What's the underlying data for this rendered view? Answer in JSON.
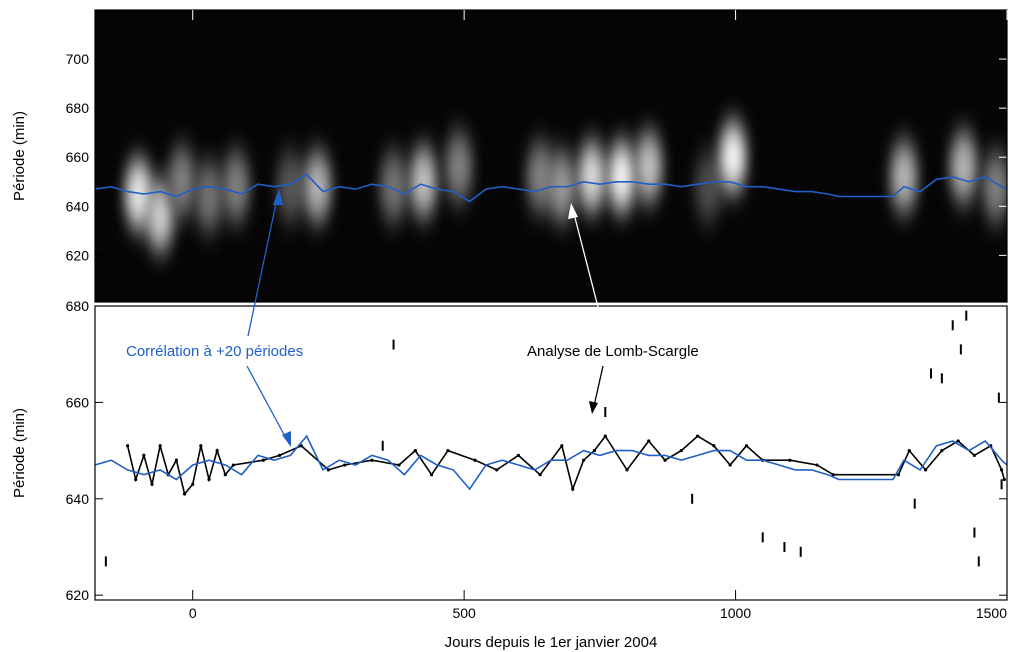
{
  "chart_data": [
    {
      "type": "heatmap",
      "ylabel": "Période (min)",
      "xlim": [
        -180,
        1500
      ],
      "ylim": [
        601,
        720
      ],
      "yticks": [
        620,
        640,
        660,
        680,
        700
      ],
      "colormap": "grayscale (black = low power, white = high power)",
      "hotspots": [
        {
          "x": -100,
          "y": 645,
          "w": 0.9
        },
        {
          "x": -60,
          "y": 636,
          "w": 0.8
        },
        {
          "x": -20,
          "y": 650,
          "w": 0.5
        },
        {
          "x": 30,
          "y": 644,
          "w": 0.45
        },
        {
          "x": 80,
          "y": 648,
          "w": 0.5
        },
        {
          "x": 180,
          "y": 648,
          "w": 0.35
        },
        {
          "x": 230,
          "y": 648,
          "w": 0.7
        },
        {
          "x": 370,
          "y": 648,
          "w": 0.45
        },
        {
          "x": 425,
          "y": 650,
          "w": 0.75
        },
        {
          "x": 490,
          "y": 656,
          "w": 0.5
        },
        {
          "x": 640,
          "y": 652,
          "w": 0.5
        },
        {
          "x": 680,
          "y": 648,
          "w": 0.6
        },
        {
          "x": 735,
          "y": 652,
          "w": 0.85
        },
        {
          "x": 790,
          "y": 652,
          "w": 0.95
        },
        {
          "x": 840,
          "y": 656,
          "w": 0.75
        },
        {
          "x": 950,
          "y": 648,
          "w": 0.3
        },
        {
          "x": 995,
          "y": 660,
          "w": 0.95
        },
        {
          "x": 1310,
          "y": 652,
          "w": 0.7
        },
        {
          "x": 1420,
          "y": 656,
          "w": 0.7
        },
        {
          "x": 1480,
          "y": 648,
          "w": 0.5
        }
      ],
      "series": [
        {
          "color": "#1f5fc8",
          "x": [
            -180,
            -150,
            -120,
            -90,
            -60,
            -30,
            0,
            30,
            60,
            90,
            120,
            150,
            180,
            210,
            240,
            270,
            300,
            330,
            360,
            390,
            420,
            450,
            480,
            510,
            540,
            570,
            600,
            630,
            660,
            690,
            720,
            750,
            780,
            810,
            840,
            870,
            900,
            930,
            960,
            990,
            1020,
            1050,
            1080,
            1110,
            1140,
            1170,
            1190,
            1290,
            1310,
            1340,
            1370,
            1400,
            1430,
            1460,
            1490,
            1500
          ],
          "y": [
            647,
            648,
            646,
            645,
            646,
            644,
            647,
            648,
            647,
            645,
            649,
            648,
            649,
            653,
            646,
            648,
            647,
            649,
            648,
            645,
            649,
            647,
            646,
            642,
            647,
            648,
            647,
            646,
            648,
            648,
            650,
            649,
            650,
            650,
            649,
            649,
            648,
            649,
            650,
            650,
            648,
            648,
            647,
            646,
            646,
            645,
            644,
            644,
            648,
            646,
            651,
            652,
            650,
            652,
            648,
            647
          ]
        }
      ]
    },
    {
      "type": "scatter",
      "xlabel": "Jours depuis le 1er janvier 2004",
      "ylabel": "Période (min)",
      "xlim": [
        -180,
        1500
      ],
      "ylim": [
        619,
        680
      ],
      "xticks": [
        0,
        500,
        1000,
        1500
      ],
      "yticks": [
        620,
        640,
        660,
        680
      ],
      "series": [
        {
          "name": "Analyse de Lomb-Scargle",
          "color": "#000000",
          "x": [
            -120,
            -105,
            -90,
            -75,
            -60,
            -45,
            -30,
            -15,
            0,
            15,
            30,
            45,
            60,
            75,
            130,
            160,
            200,
            250,
            280,
            330,
            380,
            410,
            440,
            470,
            520,
            560,
            600,
            640,
            680,
            700,
            720,
            740,
            760,
            800,
            840,
            870,
            900,
            930,
            960,
            990,
            1020,
            1050,
            1100,
            1150,
            1180,
            1300,
            1320,
            1350,
            1380,
            1410,
            1440,
            1470,
            1490,
            1495
          ],
          "y": [
            651,
            644,
            649,
            643,
            651,
            645,
            648,
            641,
            643,
            651,
            644,
            650,
            645,
            647,
            648,
            649,
            651,
            646,
            647,
            648,
            647,
            650,
            645,
            650,
            648,
            646,
            649,
            645,
            651,
            642,
            648,
            650,
            653,
            646,
            652,
            648,
            650,
            653,
            651,
            647,
            651,
            648,
            648,
            647,
            645,
            645,
            650,
            646,
            650,
            652,
            649,
            651,
            646,
            644
          ]
        },
        {
          "name": "Corrélation à +20 périodes",
          "color": "#1f5fc8",
          "x": [
            -180,
            -150,
            -120,
            -90,
            -60,
            -30,
            0,
            30,
            60,
            90,
            120,
            150,
            180,
            210,
            240,
            270,
            300,
            330,
            360,
            390,
            420,
            450,
            480,
            510,
            540,
            570,
            600,
            630,
            660,
            690,
            720,
            750,
            780,
            810,
            840,
            870,
            900,
            930,
            960,
            990,
            1020,
            1050,
            1080,
            1110,
            1140,
            1170,
            1190,
            1290,
            1310,
            1340,
            1370,
            1400,
            1430,
            1460,
            1490,
            1500
          ],
          "y": [
            647,
            648,
            646,
            645,
            646,
            644,
            647,
            648,
            647,
            645,
            649,
            648,
            649,
            653,
            646,
            648,
            647,
            649,
            648,
            645,
            649,
            647,
            646,
            642,
            647,
            648,
            647,
            646,
            648,
            648,
            650,
            649,
            650,
            650,
            649,
            649,
            648,
            649,
            650,
            650,
            648,
            648,
            647,
            646,
            646,
            645,
            644,
            644,
            648,
            646,
            651,
            652,
            650,
            652,
            648,
            647
          ]
        }
      ],
      "outliers": [
        {
          "x": 370,
          "y": 672
        },
        {
          "x": 350,
          "y": 651
        },
        {
          "x": 760,
          "y": 658
        },
        {
          "x": 920,
          "y": 640
        },
        {
          "x": 1050,
          "y": 632
        },
        {
          "x": 1090,
          "y": 630
        },
        {
          "x": 1120,
          "y": 629
        },
        {
          "x": 1360,
          "y": 666
        },
        {
          "x": 1380,
          "y": 665
        },
        {
          "x": 1400,
          "y": 676
        },
        {
          "x": 1415,
          "y": 671
        },
        {
          "x": 1440,
          "y": 633
        },
        {
          "x": 1448,
          "y": 627
        },
        {
          "x": 1485,
          "y": 661
        },
        {
          "x": 1490,
          "y": 643
        },
        {
          "x": -160,
          "y": 627
        },
        {
          "x": 1425,
          "y": 678
        },
        {
          "x": 1330,
          "y": 639
        }
      ]
    }
  ],
  "annotations": {
    "blue_label": "Corrélation à +20 périodes",
    "black_label": "Analyse de Lomb-Scargle"
  }
}
